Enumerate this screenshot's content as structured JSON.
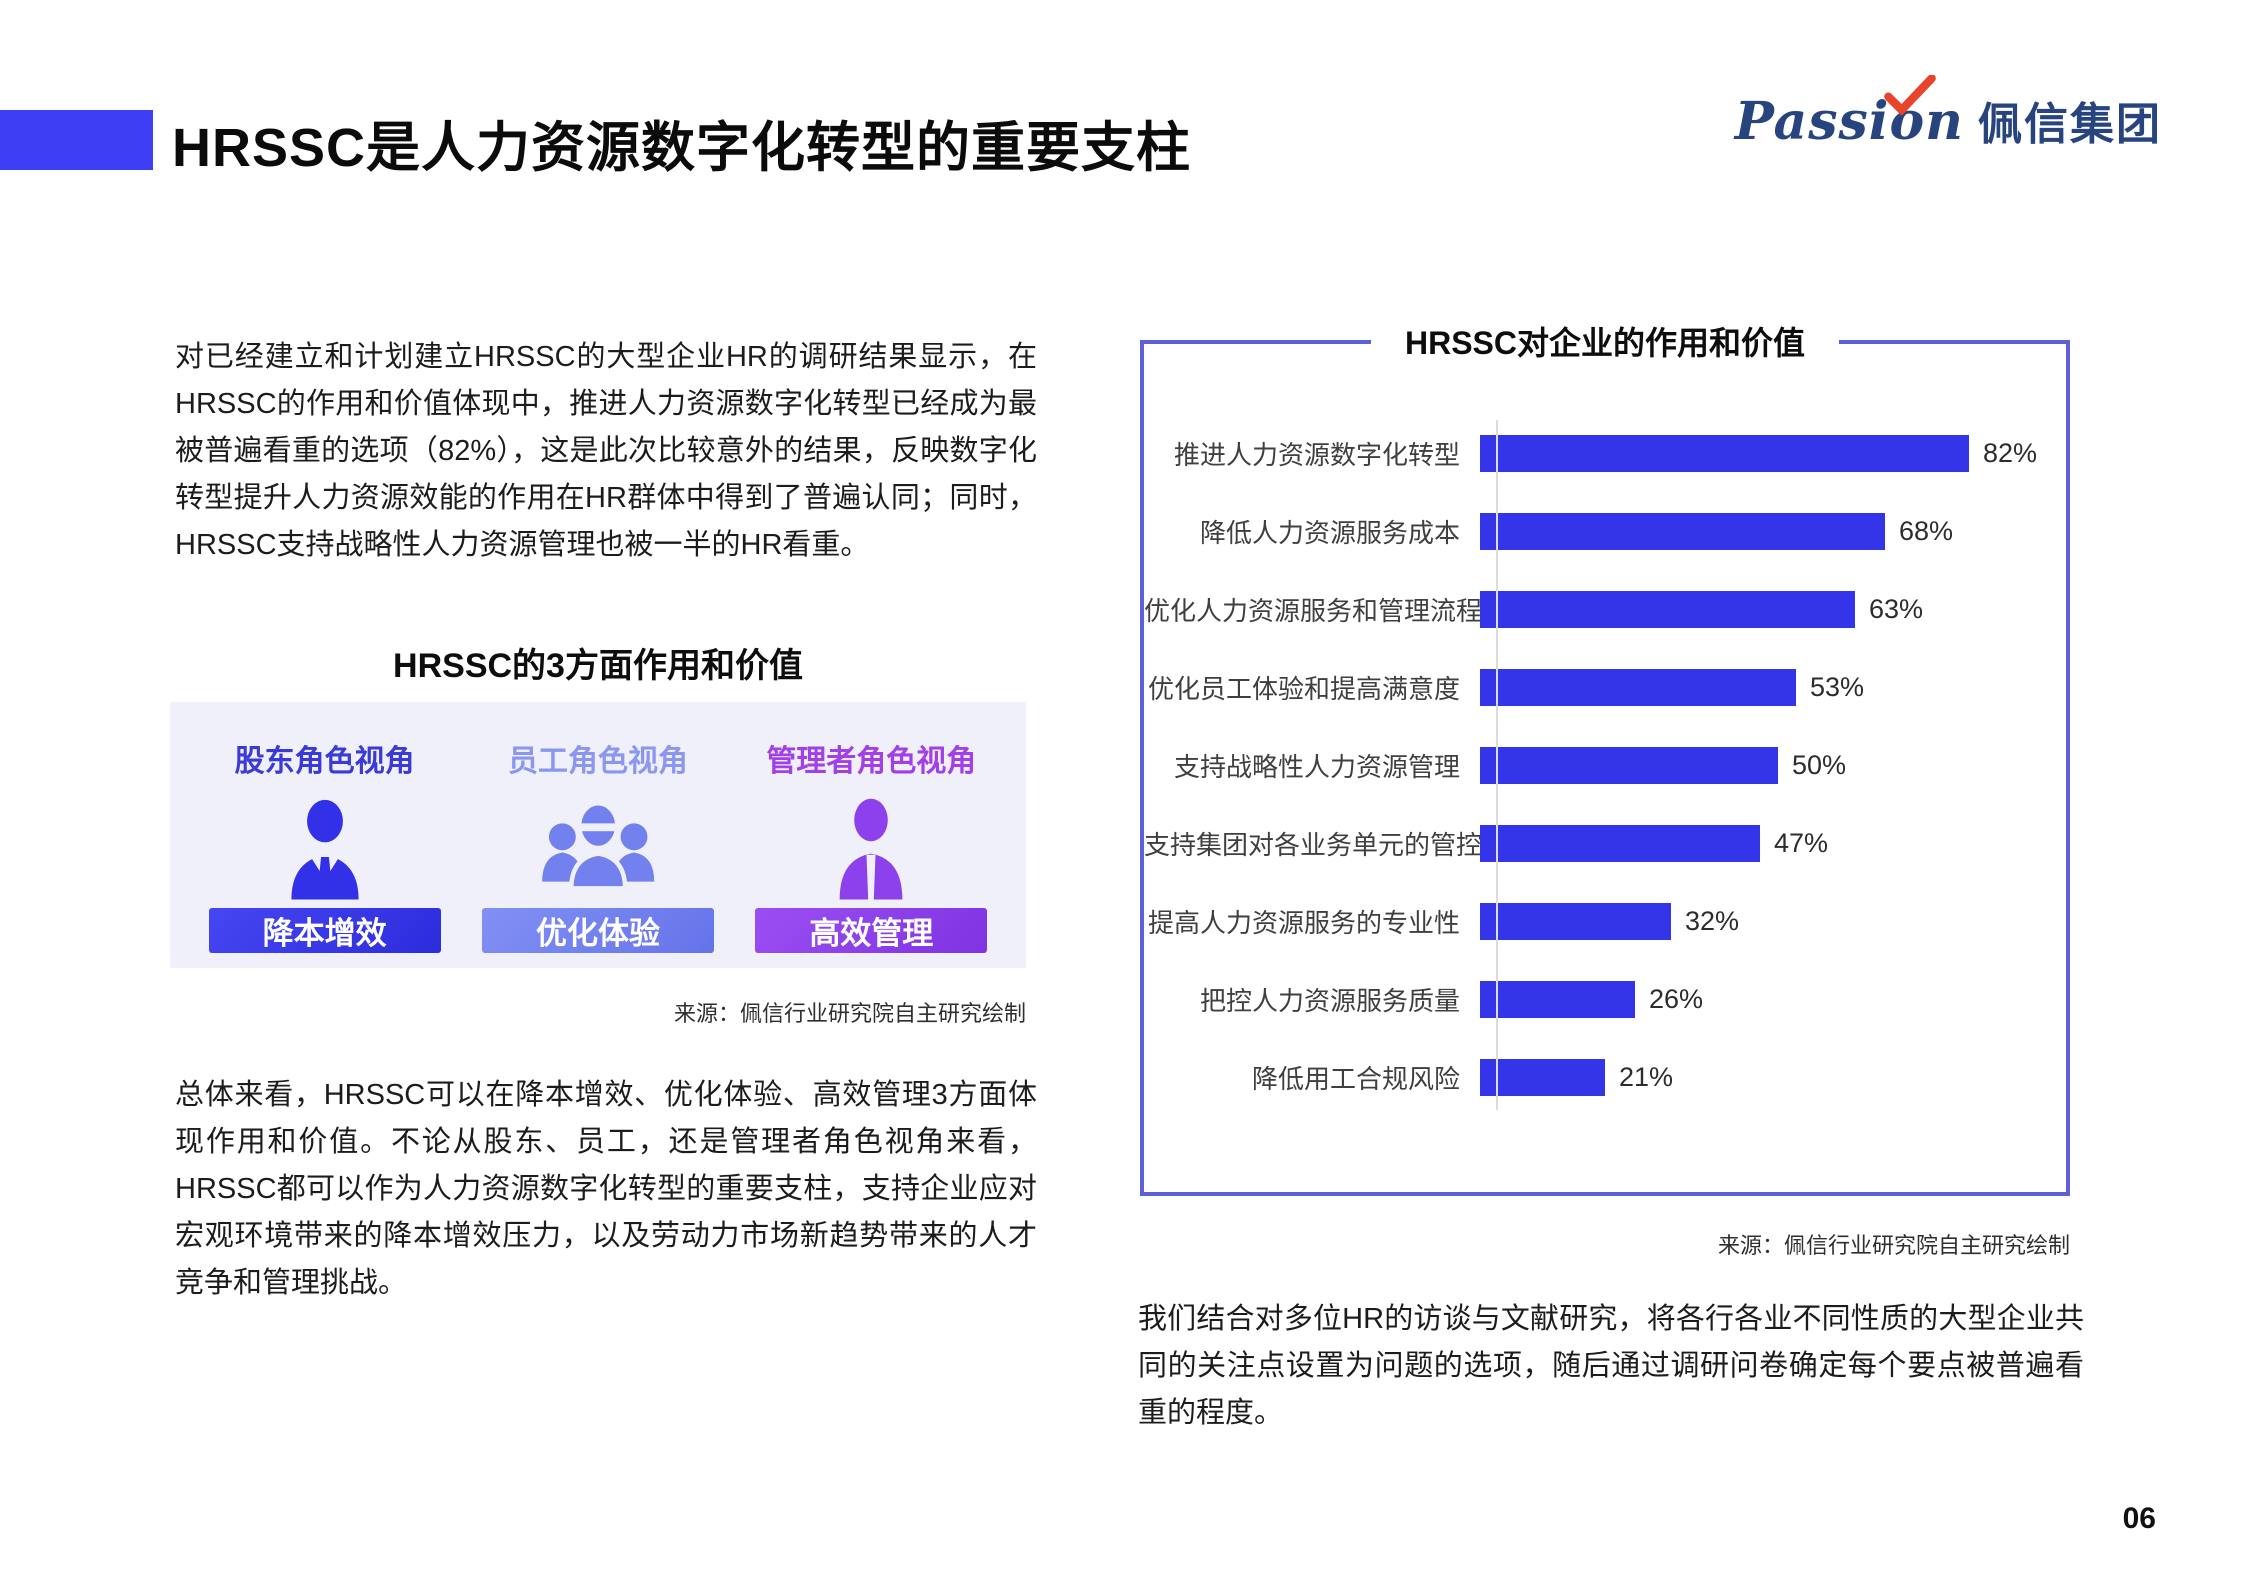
{
  "header": {
    "title": "HRSSC是人力资源数字化转型的重要支柱",
    "logo": {
      "script": "Passion",
      "cn": "佩信集团"
    },
    "accent_color": "#3e3ef5",
    "logo_color": "#27447e",
    "logo_check_color": "#e8432b"
  },
  "left": {
    "paragraph1": "对已经建立和计划建立HRSSC的大型企业HR的调研结果显示，在HRSSC的作用和价值体现中，推进人力资源数字化转型已经成为最被普遍看重的选项（82%），这是此次比较意外的结果，反映数字化转型提升人力资源效能的作用在HR群体中得到了普遍认同；同时，HRSSC支持战略性人力资源管理也被一半的HR看重。",
    "section_title": "HRSSC的3方面作用和价值",
    "roles": [
      {
        "label": "股东角色视角",
        "button": "降本增效",
        "label_color": "#3a3ad8",
        "button_color": "#3231e8",
        "icon": "executive-icon"
      },
      {
        "label": "员工角色视角",
        "button": "优化体验",
        "label_color": "#8a96f0",
        "button_color": "#7381ee",
        "icon": "employees-icon"
      },
      {
        "label": "管理者角色视角",
        "button": "高效管理",
        "label_color": "#a13fe8",
        "button_color": "#8d41ec",
        "icon": "manager-icon"
      }
    ],
    "source": "来源：佩信行业研究院自主研究绘制",
    "paragraph2": "总体来看，HRSSC可以在降本增效、优化体验、高效管理3方面体现作用和价值。不论从股东、员工，还是管理者角色视角来看，HRSSC都可以作为人力资源数字化转型的重要支柱，支持企业应对宏观环境带来的降本增效压力，以及劳动力市场新趋势带来的人才竞争和管理挑战。"
  },
  "right": {
    "source": "来源：佩信行业研究院自主研究绘制",
    "paragraph": "我们结合对多位HR的访谈与文献研究，将各行各业不同性质的大型企业共同的关注点设置为问题的选项，随后通过调研问卷确定每个要点被普遍看重的程度。"
  },
  "chart_data": {
    "type": "bar",
    "orientation": "horizontal",
    "title": "HRSSC对企业的作用和价值",
    "categories": [
      "推进人力资源数字化转型",
      "降低人力资源服务成本",
      "优化人力资源服务和管理流程",
      "优化员工体验和提高满意度",
      "支持战略性人力资源管理",
      "支持集团对各业务单元的管控",
      "提高人力资源服务的专业性",
      "把控人力资源服务质量",
      "降低用工合规风险"
    ],
    "values": [
      82,
      68,
      63,
      53,
      50,
      47,
      32,
      26,
      21
    ],
    "display_values": [
      "82%",
      "68%",
      "63%",
      "53%",
      "50%",
      "47%",
      "32%",
      "26%",
      "21%"
    ],
    "unit": "%",
    "xlim": [
      0,
      100
    ],
    "bar_color": "#3434e8",
    "axis_color": "#dcdcdc",
    "border_color": "#5d61d9",
    "grid": false,
    "legend": false,
    "value_labels": "end-of-bar"
  },
  "page": {
    "number": "06"
  }
}
